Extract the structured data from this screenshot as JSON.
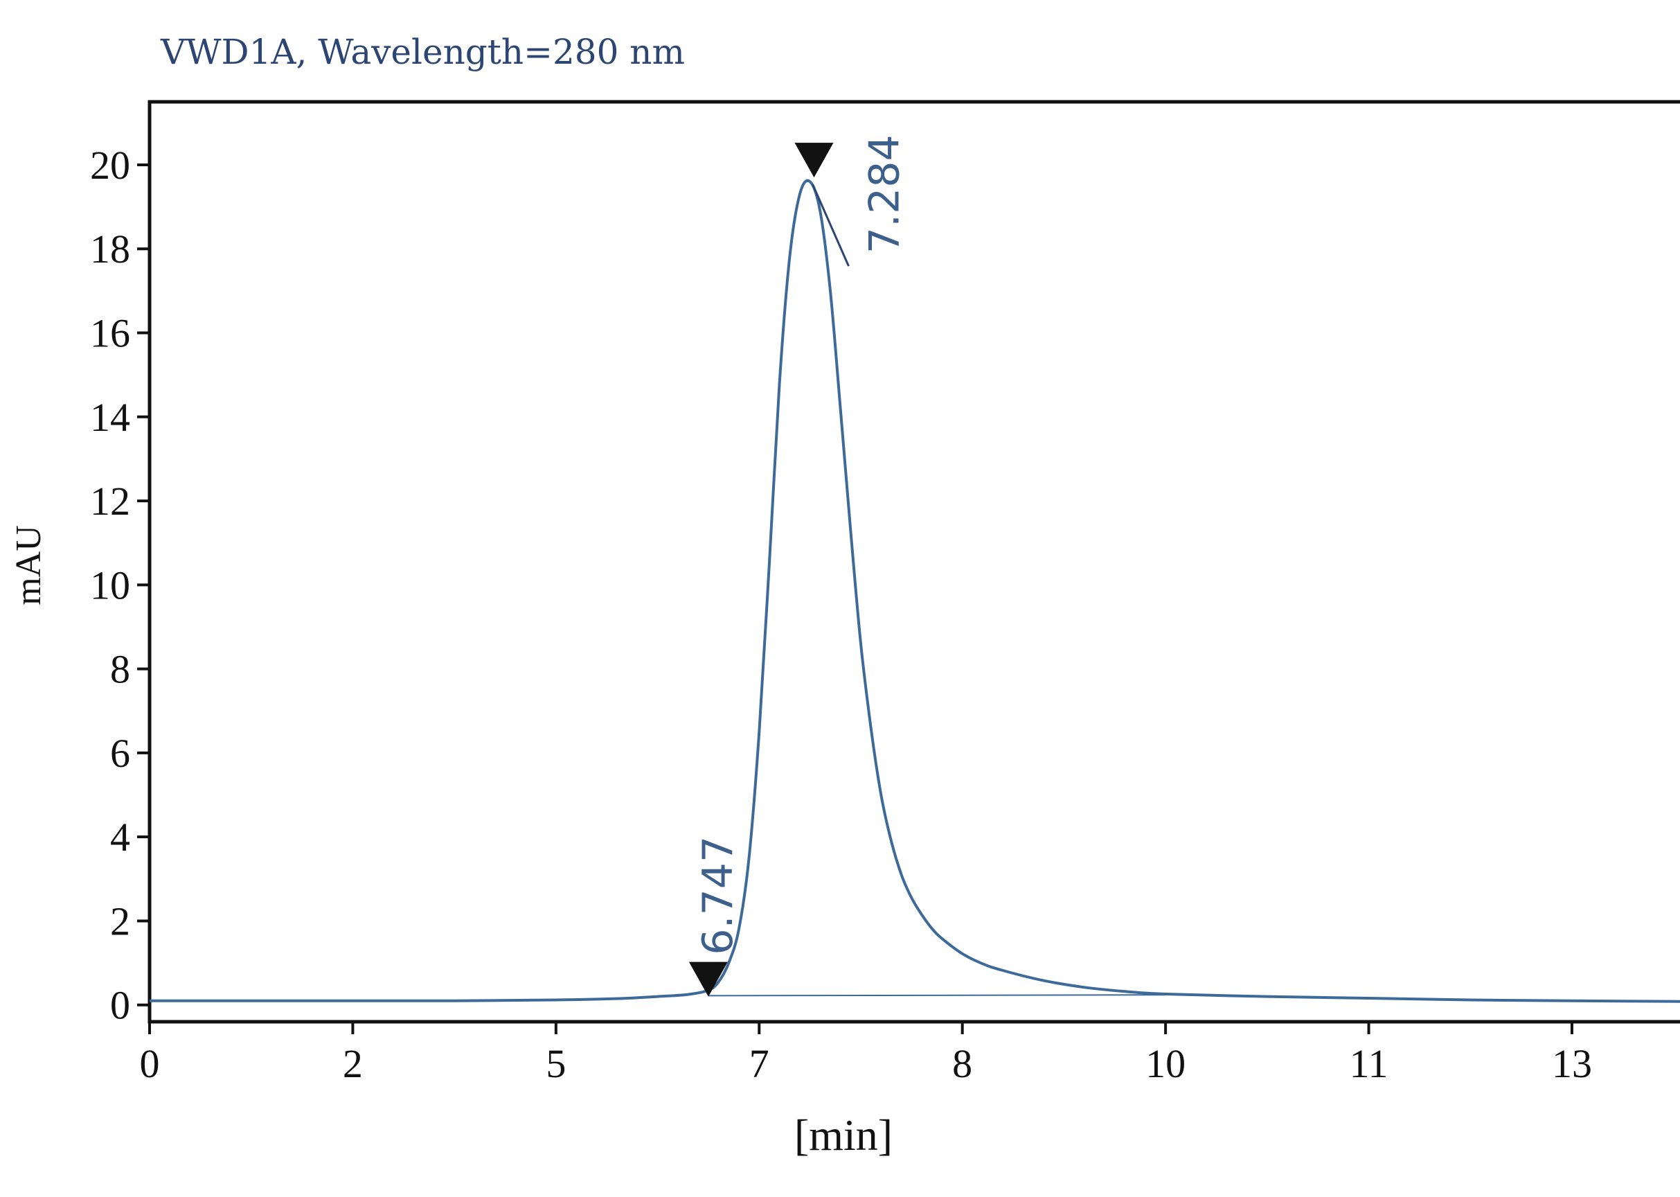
{
  "chart_data": {
    "type": "line",
    "title": "VWD1A, Wavelength=280 nm",
    "xlabel": "[min]",
    "ylabel": "mAU",
    "x_ticks": [
      {
        "label": "0",
        "value": 0
      },
      {
        "label": "2",
        "value": 1
      },
      {
        "label": "5",
        "value": 2
      },
      {
        "label": "7",
        "value": 3
      },
      {
        "label": "8",
        "value": 4
      },
      {
        "label": "10",
        "value": 5
      },
      {
        "label": "11",
        "value": 6
      },
      {
        "label": "13",
        "value": 7
      }
    ],
    "xlim": [
      0,
      7.6
    ],
    "y_ticks": [
      0,
      2,
      4,
      6,
      8,
      10,
      12,
      14,
      16,
      18,
      20
    ],
    "ylim": [
      -0.4,
      21.5
    ],
    "grid": false,
    "series": [
      {
        "color": "#3d6a99",
        "x": [
          0,
          0.5,
          1,
          1.5,
          2,
          2.3,
          2.5,
          2.65,
          2.75,
          2.8,
          2.85,
          2.9,
          2.95,
          3.0,
          3.05,
          3.1,
          3.15,
          3.2,
          3.25,
          3.3,
          3.35,
          3.4,
          3.45,
          3.5,
          3.55,
          3.6,
          3.65,
          3.7,
          3.75,
          3.8,
          3.85,
          3.9,
          4.0,
          4.1,
          4.2,
          4.4,
          4.6,
          4.8,
          5.0,
          5.5,
          6.0,
          6.5,
          7.0,
          7.6
        ],
        "y": [
          0.1,
          0.1,
          0.1,
          0.1,
          0.12,
          0.15,
          0.2,
          0.25,
          0.35,
          0.55,
          1.0,
          1.8,
          3.5,
          6.5,
          10.5,
          14.8,
          17.8,
          19.3,
          19.6,
          18.9,
          17.0,
          14.2,
          11.3,
          8.6,
          6.6,
          5.0,
          3.9,
          3.1,
          2.55,
          2.15,
          1.82,
          1.58,
          1.22,
          0.98,
          0.82,
          0.58,
          0.42,
          0.32,
          0.26,
          0.2,
          0.16,
          0.12,
          0.1,
          0.08
        ]
      }
    ],
    "baseline": {
      "color": "#3d6a99",
      "x": [
        2.75,
        5.0
      ],
      "y": [
        0.22,
        0.24
      ]
    },
    "peaks": [
      {
        "label": "6.747",
        "x": 2.75,
        "y": 0.2
      },
      {
        "label": "7.284",
        "x": 3.27,
        "y": 19.7
      }
    ]
  }
}
